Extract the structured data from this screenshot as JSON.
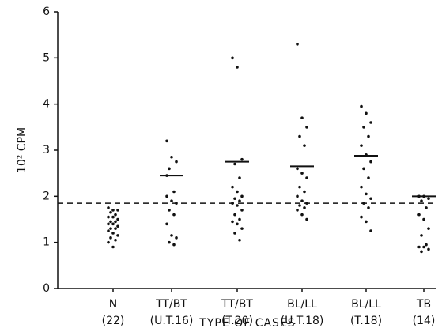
{
  "chart_data": {
    "type": "strip",
    "y_label": "10² CPM",
    "x_label": "TYPE OF CASES",
    "categories": [
      "N",
      "TT/BT",
      "TT/BT",
      "BL/LL",
      "BL/LL",
      "TB"
    ],
    "category_sublabels": [
      "(22)",
      "(U.T.16)",
      "(T.20)",
      "(U.T.18)",
      "(T.18)",
      "(14)"
    ],
    "points": [
      [
        1.75,
        1.7,
        1.7,
        1.65,
        1.6,
        1.55,
        1.55,
        1.5,
        1.45,
        1.45,
        1.4,
        1.4,
        1.35,
        1.3,
        1.3,
        1.25,
        1.2,
        1.15,
        1.1,
        1.05,
        1.0,
        0.9
      ],
      [
        3.2,
        2.85,
        2.75,
        2.6,
        2.1,
        2.0,
        1.9,
        1.85,
        1.7,
        1.6,
        1.4,
        1.15,
        1.1,
        1.0,
        0.95,
        2.45
      ],
      [
        5.0,
        4.8,
        2.8,
        2.7,
        2.4,
        2.2,
        2.1,
        2.0,
        1.95,
        1.9,
        1.85,
        1.8,
        1.7,
        1.6,
        1.5,
        1.45,
        1.4,
        1.3,
        1.2,
        1.05
      ],
      [
        5.3,
        3.7,
        3.5,
        3.3,
        3.1,
        2.6,
        2.5,
        2.4,
        2.2,
        2.1,
        2.0,
        1.9,
        1.85,
        1.8,
        1.75,
        1.7,
        1.6,
        1.5
      ],
      [
        3.95,
        3.8,
        3.6,
        3.5,
        3.3,
        3.1,
        2.9,
        2.75,
        2.6,
        2.4,
        2.2,
        2.05,
        1.95,
        1.85,
        1.75,
        1.55,
        1.45,
        1.25
      ],
      [
        2.0,
        2.0,
        1.95,
        1.9,
        1.75,
        1.6,
        1.5,
        1.3,
        1.15,
        0.95,
        0.9,
        0.9,
        0.85,
        0.8
      ]
    ],
    "means": [
      null,
      2.45,
      2.75,
      2.65,
      2.88,
      2.0
    ],
    "reference_line": 1.85,
    "color": "#111111",
    "ylim": [
      0,
      6
    ],
    "yticks": [
      0,
      1,
      2,
      3,
      4,
      5,
      6
    ]
  }
}
